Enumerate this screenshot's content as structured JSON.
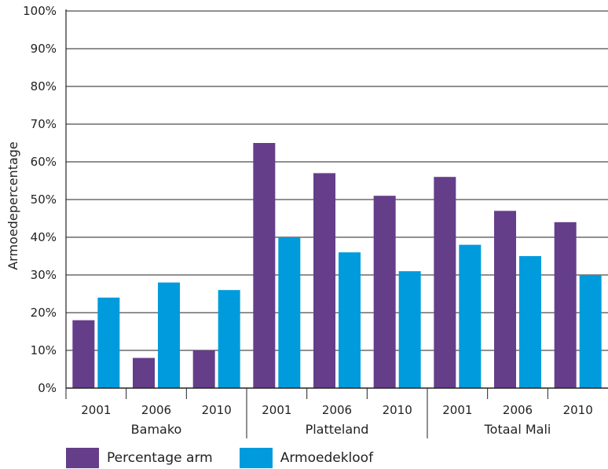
{
  "chart_data": {
    "type": "bar",
    "ylabel": "Armoedepercentage",
    "ylim": [
      0,
      100
    ],
    "yticks": [
      "0%",
      "10%",
      "20%",
      "30%",
      "40%",
      "50%",
      "60%",
      "70%",
      "80%",
      "90%",
      "100%"
    ],
    "grid": "horizontal",
    "legend_position": "bottom-left",
    "groups": [
      {
        "name": "Bamako",
        "years": [
          "2001",
          "2006",
          "2010"
        ]
      },
      {
        "name": "Platteland",
        "years": [
          "2001",
          "2006",
          "2010"
        ]
      },
      {
        "name": "Totaal Mali",
        "years": [
          "2001",
          "2006",
          "2010"
        ]
      }
    ],
    "series": [
      {
        "name": "Percentage arm",
        "color": "#653e8a",
        "values": [
          18,
          8,
          10,
          65,
          57,
          51,
          56,
          47,
          44
        ]
      },
      {
        "name": "Armoedekloof",
        "color": "#009bdc",
        "values": [
          24,
          28,
          26,
          40,
          36,
          31,
          38,
          35,
          30
        ]
      }
    ]
  }
}
